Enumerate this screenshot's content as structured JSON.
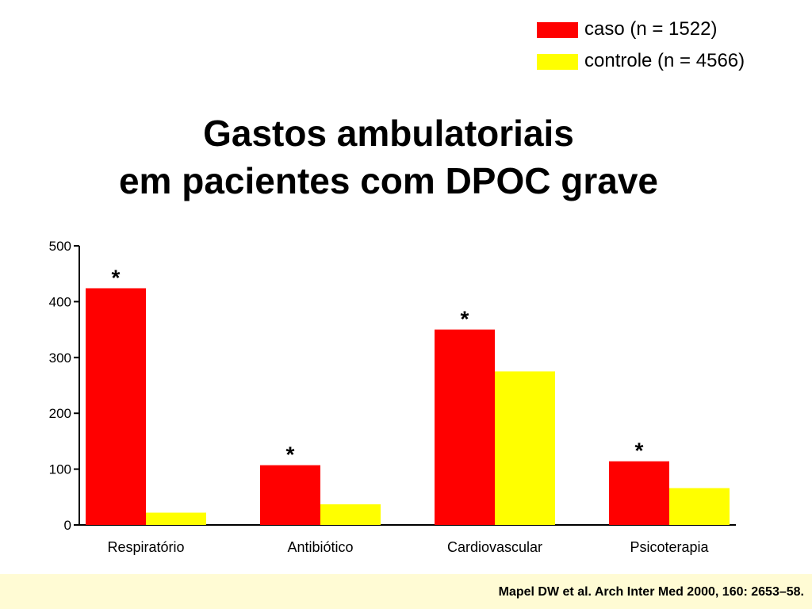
{
  "title_line1": "Gastos ambulatoriais",
  "title_line2": "em pacientes com DPOC grave",
  "citation": "Mapel DW et al. Arch Inter Med 2000, 160: 2653–58.",
  "colors": {
    "caso": "#ff0000",
    "controle": "#ffff00",
    "footer": "#fffbd4"
  },
  "chart_data": {
    "type": "bar",
    "title": "Gastos ambulatoriais em pacientes com DPOC grave",
    "xlabel": "",
    "ylabel": "",
    "ylim": [
      0,
      500
    ],
    "yticks": [
      0,
      100,
      200,
      300,
      400,
      500
    ],
    "grid": false,
    "legend": "top-right",
    "categories": [
      "Respiratório",
      "Antibiótico",
      "Cardiovascular",
      "Psicoterapia"
    ],
    "series": [
      {
        "name": "caso (n = 1522)",
        "color": "#ff0000",
        "values": [
          424,
          107,
          350,
          114
        ]
      },
      {
        "name": "controle (n = 4566)",
        "color": "#ffff00",
        "values": [
          22,
          37,
          275,
          66
        ]
      }
    ],
    "annotations": [
      {
        "text": "*",
        "category": "Respiratório",
        "series": "caso (n = 1522)"
      },
      {
        "text": "*",
        "category": "Antibiótico",
        "series": "caso (n = 1522)"
      },
      {
        "text": "*",
        "category": "Cardiovascular",
        "series": "caso (n = 1522)"
      },
      {
        "text": "*",
        "category": "Psicoterapia",
        "series": "caso (n = 1522)"
      }
    ]
  }
}
